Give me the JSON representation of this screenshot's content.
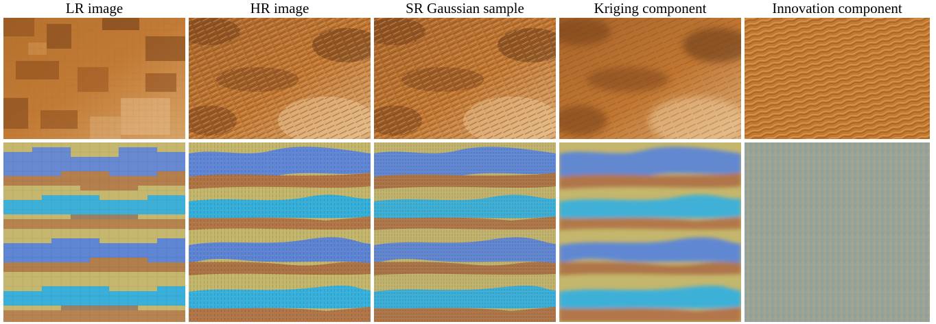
{
  "figure": {
    "columns": [
      {
        "label": "LR image"
      },
      {
        "label": "HR image"
      },
      {
        "label": "SR Gaussian sample"
      },
      {
        "label": "Kriging component"
      },
      {
        "label": "Innovation component"
      }
    ],
    "rows": [
      {
        "texture": "fur",
        "palette": [
          "#b8702a",
          "#8a4a1c",
          "#d9a060",
          "#c07a35",
          "#6e3a18"
        ]
      },
      {
        "texture": "stripes",
        "palette": [
          "#c7b86a",
          "#5c86d6",
          "#b27646",
          "#39afd8",
          "#a4a26a"
        ]
      }
    ]
  }
}
